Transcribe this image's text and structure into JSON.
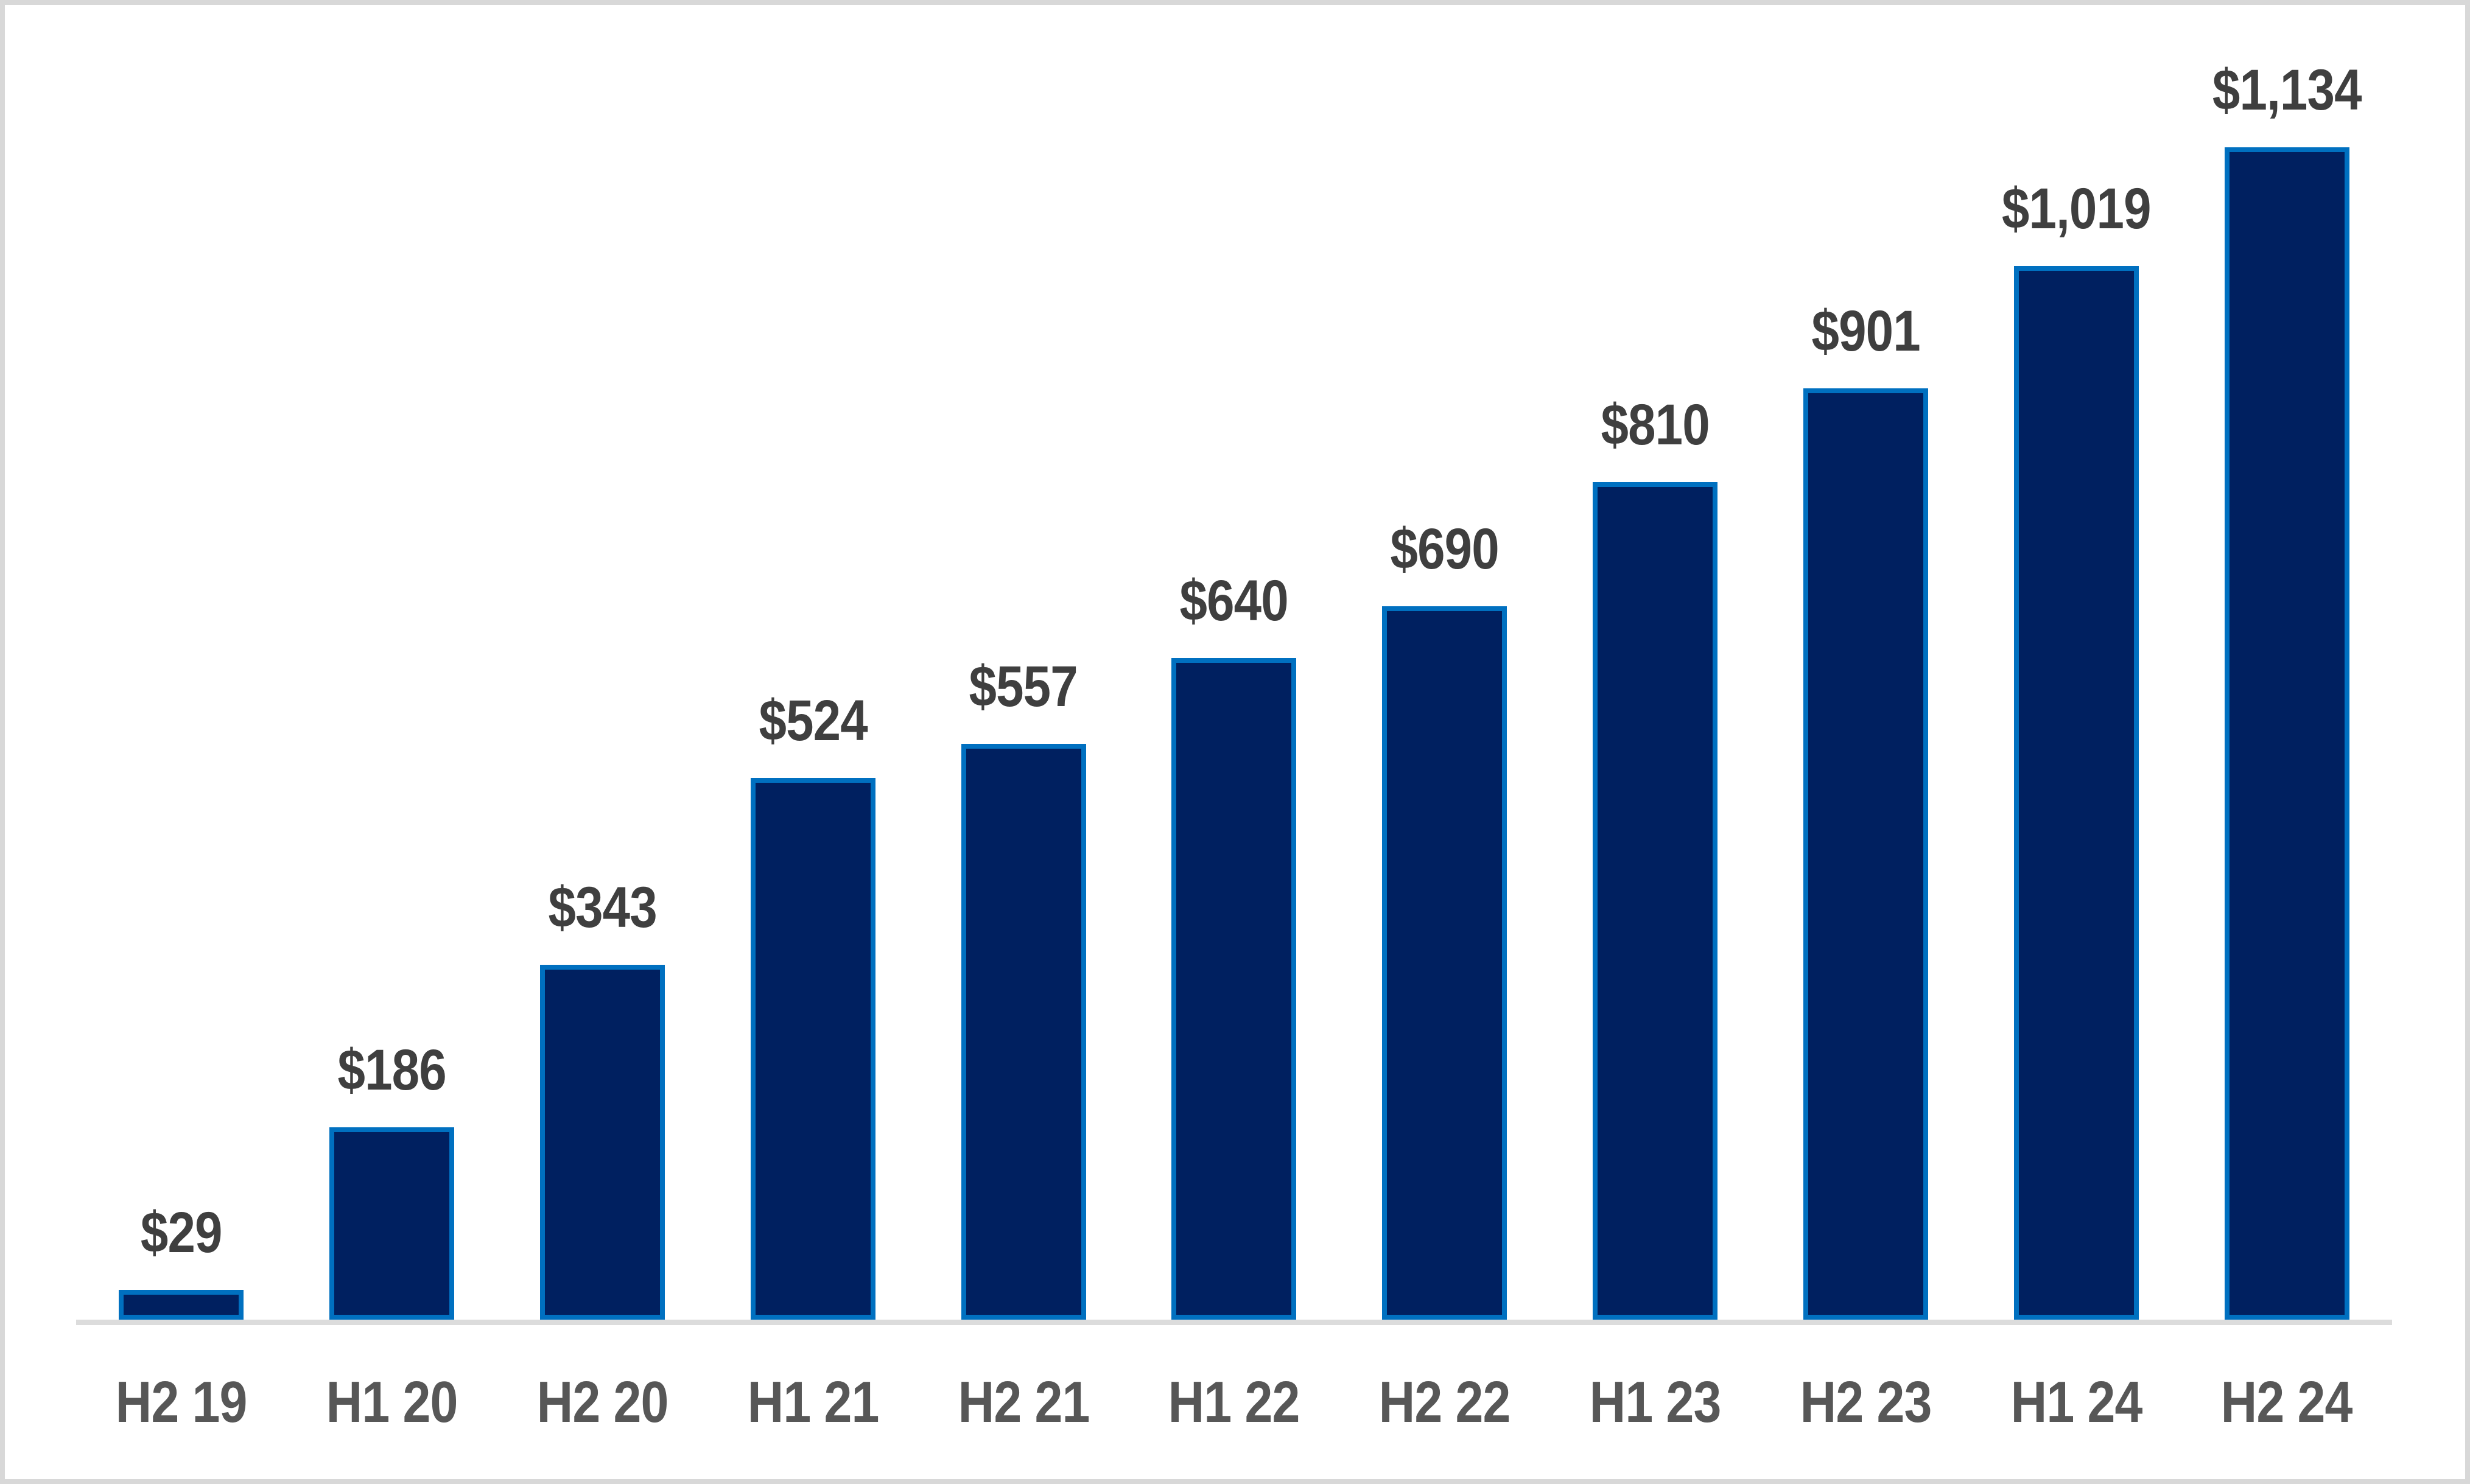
{
  "chart_data": {
    "type": "bar",
    "title": "",
    "xlabel": "",
    "ylabel": "",
    "categories": [
      "H2 19",
      "H1 20",
      "H2 20",
      "H1 21",
      "H2 21",
      "H1 22",
      "H2 22",
      "H1 23",
      "H2 23",
      "H1 24",
      "H2 24"
    ],
    "values": [
      29,
      186,
      343,
      524,
      557,
      640,
      690,
      810,
      901,
      1019,
      1134
    ],
    "data_labels": [
      "$29",
      "$186",
      "$343",
      "$524",
      "$557",
      "$640",
      "$690",
      "$810",
      "$901",
      "$1,019",
      "$1,134"
    ],
    "max_value": 1134,
    "ylim": [
      0,
      1200
    ],
    "legend_position": "none",
    "gridlines": "off",
    "y_axis_visible": false,
    "colors": {
      "bar_fill": "#002060",
      "bar_border": "#0070C0",
      "value_label": "#3F3F3F",
      "axis_label": "#575757",
      "axis_line": "#DCDCDC",
      "frame_border": "#D8D8D8",
      "background": "#FFFFFF"
    }
  }
}
